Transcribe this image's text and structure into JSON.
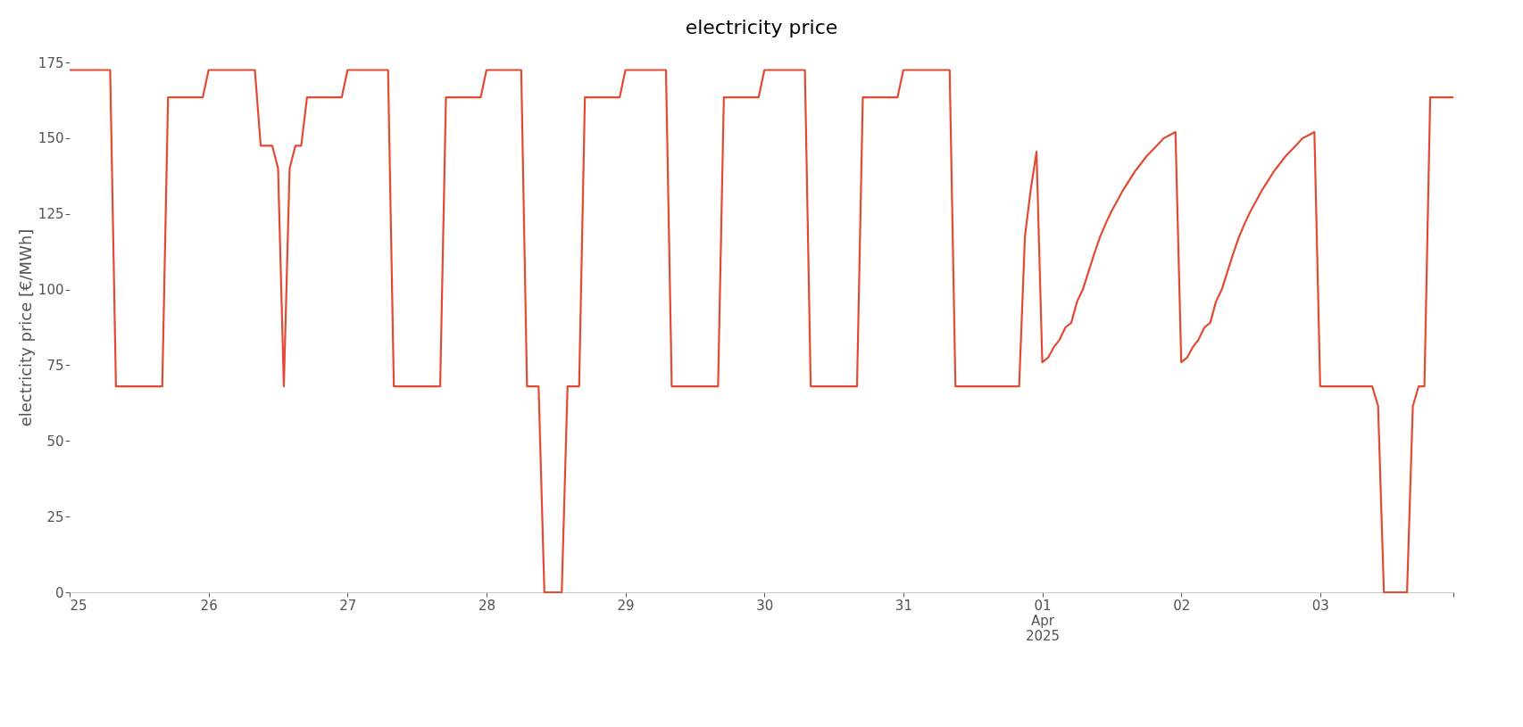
{
  "chart_data": {
    "type": "line",
    "title": "electricity price",
    "ylabel": "electricity price [€/MWh]",
    "x": [
      "2025-03-25T00:00",
      "2025-03-25T07:00",
      "2025-03-25T08:00",
      "2025-03-25T16:00",
      "2025-03-25T17:00",
      "2025-03-25T23:00",
      "2025-03-26T00:00",
      "2025-03-26T08:00",
      "2025-03-26T09:00",
      "2025-03-26T11:00",
      "2025-03-26T12:00",
      "2025-03-26T13:00",
      "2025-03-26T14:00",
      "2025-03-26T15:00",
      "2025-03-26T16:00",
      "2025-03-26T17:00",
      "2025-03-26T23:00",
      "2025-03-27T00:00",
      "2025-03-27T07:00",
      "2025-03-27T08:00",
      "2025-03-27T16:00",
      "2025-03-27T17:00",
      "2025-03-27T23:00",
      "2025-03-28T00:00",
      "2025-03-28T06:00",
      "2025-03-28T07:00",
      "2025-03-28T09:00",
      "2025-03-28T10:00",
      "2025-03-28T13:00",
      "2025-03-28T14:00",
      "2025-03-28T16:00",
      "2025-03-28T17:00",
      "2025-03-28T23:00",
      "2025-03-29T00:00",
      "2025-03-29T07:00",
      "2025-03-29T08:00",
      "2025-03-29T16:00",
      "2025-03-29T17:00",
      "2025-03-29T23:00",
      "2025-03-30T00:00",
      "2025-03-30T07:00",
      "2025-03-30T08:00",
      "2025-03-30T16:00",
      "2025-03-30T17:00",
      "2025-03-30T23:00",
      "2025-03-31T00:00",
      "2025-03-31T08:00",
      "2025-03-31T09:00",
      "2025-03-31T20:00",
      "2025-03-31T21:00",
      "2025-03-31T22:00",
      "2025-03-31T23:00",
      "2025-04-01T00:00",
      "2025-04-01T01:00",
      "2025-04-01T02:00",
      "2025-04-01T03:00",
      "2025-04-01T04:00",
      "2025-04-01T05:00",
      "2025-04-01T06:00",
      "2025-04-01T07:00",
      "2025-04-01T08:00",
      "2025-04-01T09:00",
      "2025-04-01T10:00",
      "2025-04-01T11:00",
      "2025-04-01T12:00",
      "2025-04-01T13:00",
      "2025-04-01T14:00",
      "2025-04-01T15:00",
      "2025-04-01T16:00",
      "2025-04-01T17:00",
      "2025-04-01T18:00",
      "2025-04-01T19:00",
      "2025-04-01T20:00",
      "2025-04-01T21:00",
      "2025-04-01T22:00",
      "2025-04-01T23:00",
      "2025-04-02T00:00",
      "2025-04-02T01:00",
      "2025-04-02T02:00",
      "2025-04-02T03:00",
      "2025-04-02T04:00",
      "2025-04-02T05:00",
      "2025-04-02T06:00",
      "2025-04-02T07:00",
      "2025-04-02T08:00",
      "2025-04-02T09:00",
      "2025-04-02T10:00",
      "2025-04-02T11:00",
      "2025-04-02T12:00",
      "2025-04-02T13:00",
      "2025-04-02T14:00",
      "2025-04-02T15:00",
      "2025-04-02T16:00",
      "2025-04-02T17:00",
      "2025-04-02T18:00",
      "2025-04-02T19:00",
      "2025-04-02T20:00",
      "2025-04-02T21:00",
      "2025-04-02T22:00",
      "2025-04-02T23:00",
      "2025-04-03T00:00",
      "2025-04-03T09:00",
      "2025-04-03T10:00",
      "2025-04-03T11:00",
      "2025-04-03T15:00",
      "2025-04-03T16:00",
      "2025-04-03T17:00",
      "2025-04-03T18:00",
      "2025-04-03T19:00",
      "2025-04-03T23:00"
    ],
    "series": [
      {
        "color": "#e24a33",
        "values": [
          172.5,
          172.5,
          68,
          68,
          163.5,
          163.5,
          172.5,
          172.5,
          147.5,
          147.5,
          140,
          68,
          140,
          147.5,
          147.5,
          163.5,
          163.5,
          172.5,
          172.5,
          68,
          68,
          163.5,
          163.5,
          172.5,
          172.5,
          68,
          68,
          0,
          0,
          68,
          68,
          163.5,
          163.5,
          172.5,
          172.5,
          68,
          68,
          163.5,
          163.5,
          172.5,
          172.5,
          68,
          68,
          163.5,
          163.5,
          172.5,
          172.5,
          68,
          68,
          117.5,
          133,
          145.5,
          76,
          77.5,
          81,
          83.5,
          87.5,
          89,
          96,
          100,
          106,
          112,
          117.5,
          122,
          126,
          129.5,
          133,
          136,
          139,
          141.5,
          144,
          146,
          148,
          150,
          151,
          152,
          76,
          77.5,
          81,
          83.5,
          87.5,
          89,
          96,
          100,
          106,
          112,
          117.5,
          122,
          126,
          129.5,
          133,
          136,
          139,
          141.5,
          144,
          146,
          148,
          150,
          151,
          152,
          68,
          68,
          61.5,
          0,
          0,
          61.5,
          68,
          68,
          163.5,
          163.5
        ]
      }
    ],
    "xlim": [
      "2025-03-25T00:00",
      "2025-04-03T23:00"
    ],
    "xticks": [
      {
        "value": "2025-03-25",
        "label": "25"
      },
      {
        "value": "2025-03-26",
        "label": "26"
      },
      {
        "value": "2025-03-27",
        "label": "27"
      },
      {
        "value": "2025-03-28",
        "label": "28"
      },
      {
        "value": "2025-03-29",
        "label": "29"
      },
      {
        "value": "2025-03-30",
        "label": "30"
      },
      {
        "value": "2025-03-31",
        "label": "31"
      },
      {
        "value": "2025-04-01",
        "label": "01\nApr\n2025"
      },
      {
        "value": "2025-04-02",
        "label": "02"
      },
      {
        "value": "2025-04-03",
        "label": "03"
      },
      {
        "value": "2025-04-03T23:00",
        "label": null
      }
    ],
    "ylim": [
      0,
      175
    ],
    "yticks": [
      0,
      25,
      50,
      75,
      100,
      125,
      150,
      175
    ],
    "grid": false,
    "line_style": "solid",
    "marker": "none"
  }
}
